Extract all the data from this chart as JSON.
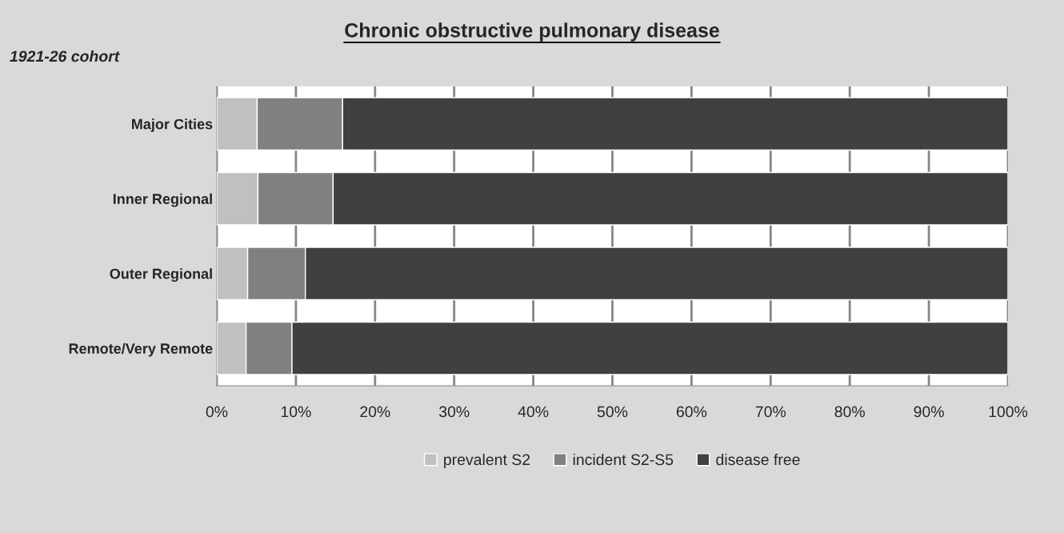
{
  "chart_data": {
    "type": "bar",
    "title": "Chronic obstructive pulmonary disease",
    "subtitle": "1921-26 cohort",
    "categories": [
      "Major Cities",
      "Inner Regional",
      "Outer Regional",
      "Remote/Very Remote"
    ],
    "orientation": "horizontal",
    "stacked": true,
    "series": [
      {
        "name": "prevalent S2",
        "color": "#c0c0c0",
        "values": [
          5.1,
          5.2,
          3.9,
          3.7
        ]
      },
      {
        "name": "incident S2-S5",
        "color": "#808080",
        "values": [
          10.8,
          9.5,
          7.3,
          5.8
        ]
      },
      {
        "name": "disease free",
        "color": "#404040",
        "values": [
          84.1,
          85.3,
          88.8,
          90.5
        ]
      }
    ],
    "xlim": [
      0,
      100
    ],
    "xticks": [
      {
        "value": 0,
        "label": "0%"
      },
      {
        "value": 10,
        "label": "10%"
      },
      {
        "value": 20,
        "label": "20%"
      },
      {
        "value": 30,
        "label": "30%"
      },
      {
        "value": 40,
        "label": "40%"
      },
      {
        "value": 50,
        "label": "50%"
      },
      {
        "value": 60,
        "label": "60%"
      },
      {
        "value": 70,
        "label": "70%"
      },
      {
        "value": 80,
        "label": "80%"
      },
      {
        "value": 90,
        "label": "90%"
      },
      {
        "value": 100,
        "label": "100%"
      }
    ],
    "grid": "x",
    "legend": "bottom"
  }
}
